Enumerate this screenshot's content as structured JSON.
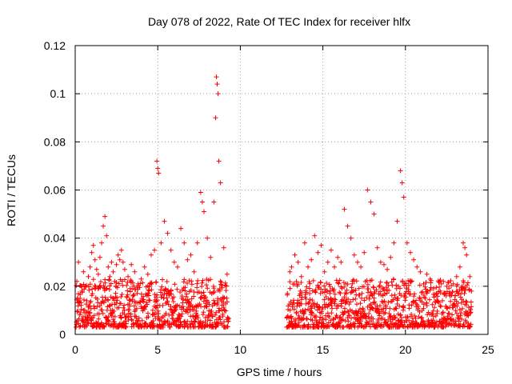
{
  "chart_data": {
    "type": "scatter",
    "title": "Day 078 of 2022, Rate Of TEC Index for receiver hlfx",
    "xlabel": "GPS time / hours",
    "ylabel": "ROTI / TECUs",
    "xlim": [
      0,
      25
    ],
    "ylim": [
      0,
      0.12
    ],
    "xticks": [
      0,
      5,
      10,
      15,
      20,
      25
    ],
    "xtick_labels": [
      "0",
      "5",
      "10",
      "15",
      "20",
      "25"
    ],
    "yticks": [
      0,
      0.02,
      0.04,
      0.06,
      0.08,
      0.1,
      0.12
    ],
    "ytick_labels": [
      "0",
      "0.02",
      "0.04",
      "0.06",
      "0.08",
      "0.1",
      "0.12"
    ],
    "grid": true,
    "marker": "+",
    "marker_color": "#ff0000",
    "data_gap_hours": [
      9.3,
      12.8
    ],
    "series": [
      {
        "name": "ROTI",
        "x": [
          0.1,
          0.2,
          0.3,
          0.4,
          0.5,
          0.6,
          0.7,
          0.8,
          0.9,
          1.0,
          1.1,
          1.2,
          1.3,
          1.4,
          1.5,
          1.6,
          1.7,
          1.8,
          1.9,
          2.0,
          2.1,
          2.2,
          2.3,
          2.4,
          2.5,
          2.6,
          2.7,
          2.8,
          2.9,
          3.0,
          3.2,
          3.4,
          3.6,
          3.8,
          4.0,
          4.2,
          4.4,
          4.6,
          4.8,
          4.95,
          5.0,
          5.05,
          5.2,
          5.4,
          5.6,
          5.8,
          6.0,
          6.2,
          6.4,
          6.6,
          6.8,
          7.0,
          7.2,
          7.4,
          7.6,
          7.7,
          7.8,
          8.0,
          8.2,
          8.4,
          8.5,
          8.55,
          8.6,
          8.65,
          8.7,
          8.8,
          9.0,
          9.2,
          13.0,
          13.1,
          13.3,
          13.5,
          13.7,
          13.9,
          14.1,
          14.3,
          14.5,
          14.7,
          14.9,
          15.1,
          15.3,
          15.5,
          15.7,
          15.9,
          16.1,
          16.3,
          16.5,
          16.7,
          16.9,
          17.1,
          17.3,
          17.5,
          17.7,
          17.9,
          18.1,
          18.3,
          18.5,
          18.7,
          18.9,
          19.1,
          19.3,
          19.5,
          19.7,
          19.8,
          19.9,
          20.1,
          20.3,
          20.5,
          20.7,
          20.9,
          21.1,
          21.3,
          21.5,
          21.7,
          21.9,
          22.1,
          22.3,
          22.5,
          22.7,
          22.9,
          23.1,
          23.3,
          23.5,
          23.6,
          23.7,
          23.9,
          24.0
        ],
        "y": [
          0.022,
          0.03,
          0.015,
          0.018,
          0.026,
          0.02,
          0.014,
          0.024,
          0.028,
          0.034,
          0.037,
          0.031,
          0.027,
          0.025,
          0.032,
          0.038,
          0.045,
          0.049,
          0.041,
          0.028,
          0.024,
          0.03,
          0.026,
          0.022,
          0.029,
          0.033,
          0.031,
          0.035,
          0.03,
          0.027,
          0.024,
          0.029,
          0.026,
          0.021,
          0.023,
          0.028,
          0.025,
          0.033,
          0.035,
          0.072,
          0.069,
          0.067,
          0.038,
          0.047,
          0.042,
          0.035,
          0.03,
          0.028,
          0.044,
          0.038,
          0.031,
          0.033,
          0.026,
          0.038,
          0.059,
          0.055,
          0.051,
          0.04,
          0.032,
          0.055,
          0.09,
          0.107,
          0.104,
          0.1,
          0.072,
          0.063,
          0.036,
          0.025,
          0.026,
          0.028,
          0.033,
          0.03,
          0.024,
          0.038,
          0.028,
          0.031,
          0.041,
          0.034,
          0.037,
          0.026,
          0.03,
          0.035,
          0.028,
          0.032,
          0.03,
          0.052,
          0.045,
          0.04,
          0.033,
          0.03,
          0.028,
          0.034,
          0.06,
          0.055,
          0.05,
          0.036,
          0.03,
          0.029,
          0.027,
          0.032,
          0.038,
          0.047,
          0.068,
          0.063,
          0.057,
          0.038,
          0.034,
          0.031,
          0.028,
          0.026,
          0.021,
          0.025,
          0.023,
          0.019,
          0.017,
          0.018,
          0.022,
          0.02,
          0.016,
          0.021,
          0.024,
          0.028,
          0.038,
          0.036,
          0.033,
          0.024,
          0.018
        ]
      }
    ]
  }
}
